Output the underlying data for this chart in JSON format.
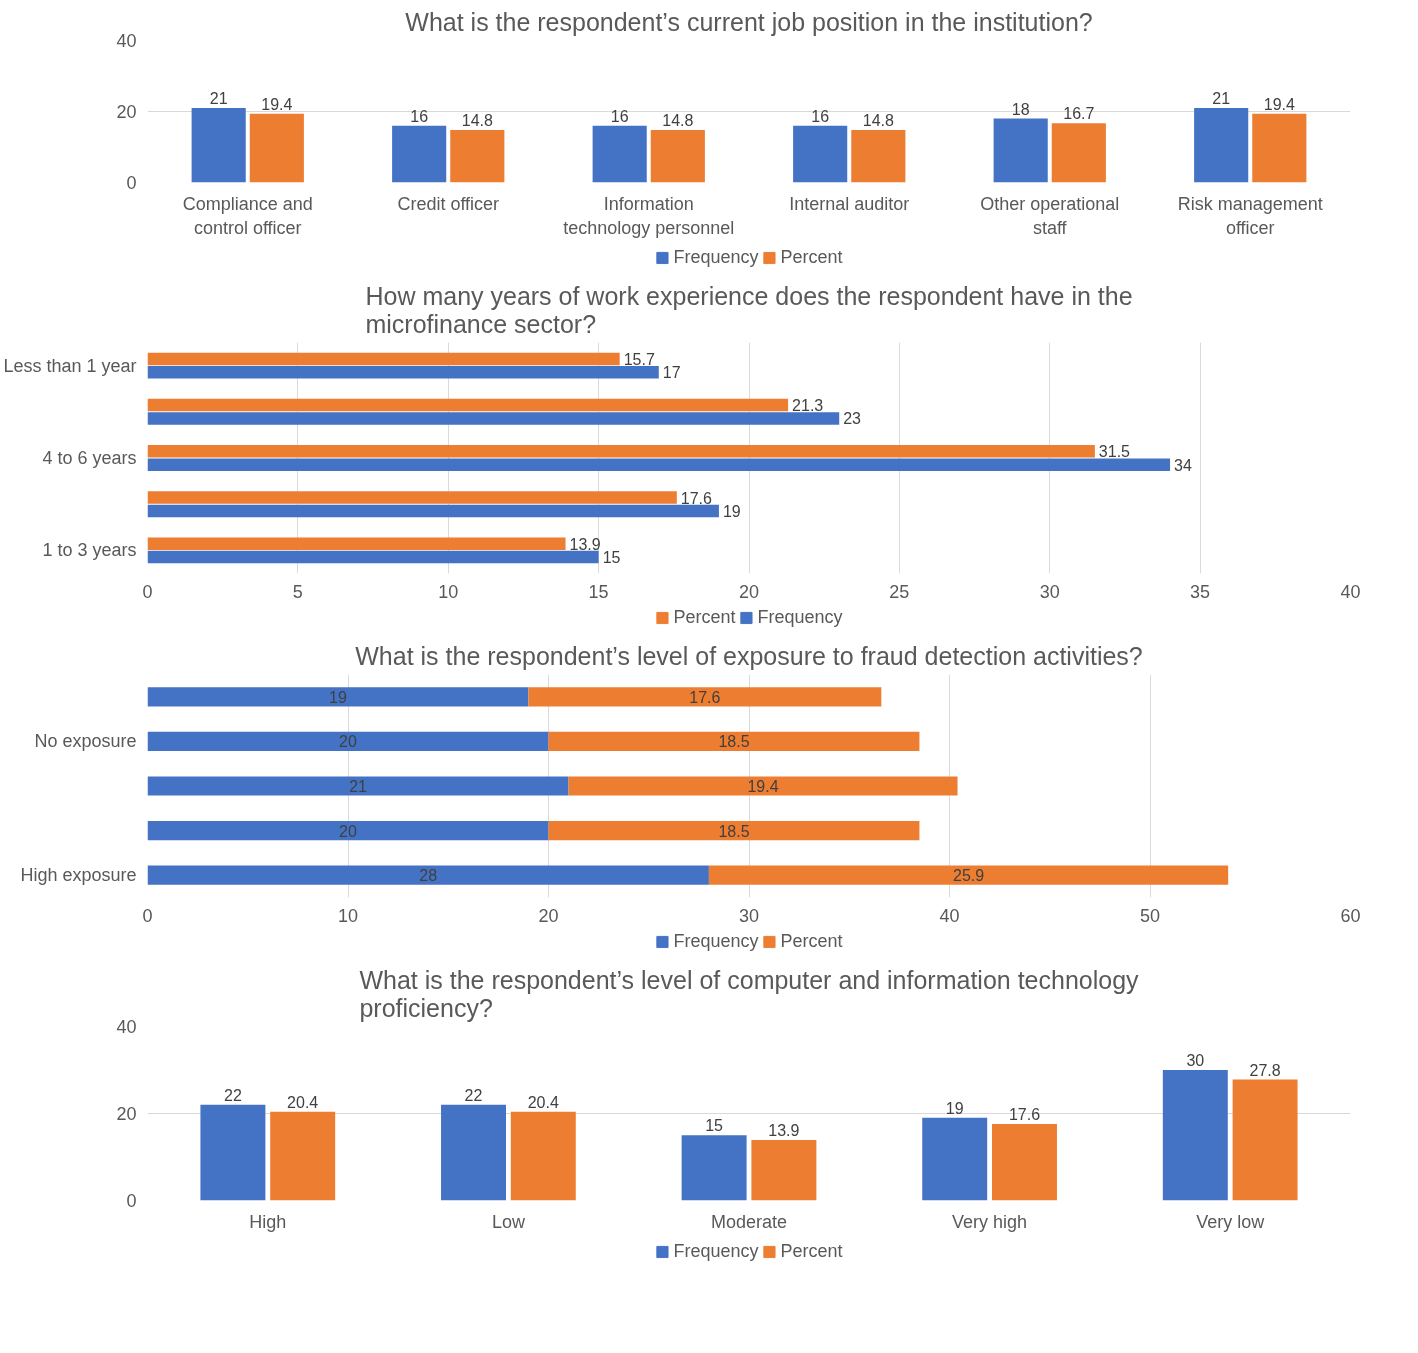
{
  "chart_data": [
    {
      "type": "bar",
      "title": "What is the respondent’s current job position in the institution?",
      "categories": [
        "Compliance and control officer",
        "Credit officer",
        "Information technology personnel",
        "Internal auditor",
        "Other operational staff",
        "Risk management officer"
      ],
      "series": [
        {
          "name": "Frequency",
          "color": "#4472c4",
          "values": [
            21,
            16,
            16,
            16,
            18,
            21
          ]
        },
        {
          "name": "Percent",
          "color": "#ed7d31",
          "values": [
            19.4,
            14.8,
            14.8,
            14.8,
            16.7,
            19.4
          ]
        }
      ],
      "ylim": [
        0,
        40
      ],
      "yticks": [
        0,
        20,
        40
      ],
      "grid": "y",
      "legend": "bottom",
      "data_labels": true
    },
    {
      "type": "bar",
      "orientation": "horizontal",
      "title": "How many years of work experience does the respondent have in the microfinance sector?",
      "categories": [
        "Less than 1 year",
        null,
        "4 to 6 years",
        null,
        "1 to 3 years"
      ],
      "series": [
        {
          "name": "Percent",
          "color": "#ed7d31",
          "values": [
            15.7,
            21.3,
            31.5,
            17.6,
            13.9
          ]
        },
        {
          "name": "Frequency",
          "color": "#4472c4",
          "values": [
            17,
            23,
            34,
            19,
            15
          ]
        }
      ],
      "xlim": [
        0,
        40
      ],
      "xticks": [
        0,
        5,
        10,
        15,
        20,
        25,
        30,
        35,
        40
      ],
      "grid": "x",
      "legend": "bottom",
      "data_labels": true
    },
    {
      "type": "bar",
      "orientation": "horizontal",
      "stacked": true,
      "title": "What is the respondent’s level of exposure to fraud detection activities?",
      "categories": [
        null,
        "No exposure",
        null,
        null,
        "High exposure"
      ],
      "series": [
        {
          "name": "Frequency",
          "color": "#4472c4",
          "values": [
            19,
            20,
            21,
            20,
            28
          ]
        },
        {
          "name": "Percent",
          "color": "#ed7d31",
          "values": [
            17.6,
            18.5,
            19.4,
            18.5,
            25.9
          ]
        }
      ],
      "xlim": [
        0,
        60
      ],
      "xticks": [
        0,
        10,
        20,
        30,
        40,
        50,
        60
      ],
      "grid": "x",
      "legend": "bottom",
      "data_labels": true
    },
    {
      "type": "bar",
      "title": "What is the respondent’s level of computer and information technology proficiency?",
      "categories": [
        "High",
        "Low",
        "Moderate",
        "Very high",
        "Very low"
      ],
      "series": [
        {
          "name": "Frequency",
          "color": "#4472c4",
          "values": [
            22,
            22,
            15,
            19,
            30
          ]
        },
        {
          "name": "Percent",
          "color": "#ed7d31",
          "values": [
            20.4,
            20.4,
            13.9,
            17.6,
            27.8
          ]
        }
      ],
      "ylim": [
        0,
        40
      ],
      "yticks": [
        0,
        20,
        40
      ],
      "grid": "y",
      "legend": "bottom",
      "data_labels": true
    }
  ]
}
